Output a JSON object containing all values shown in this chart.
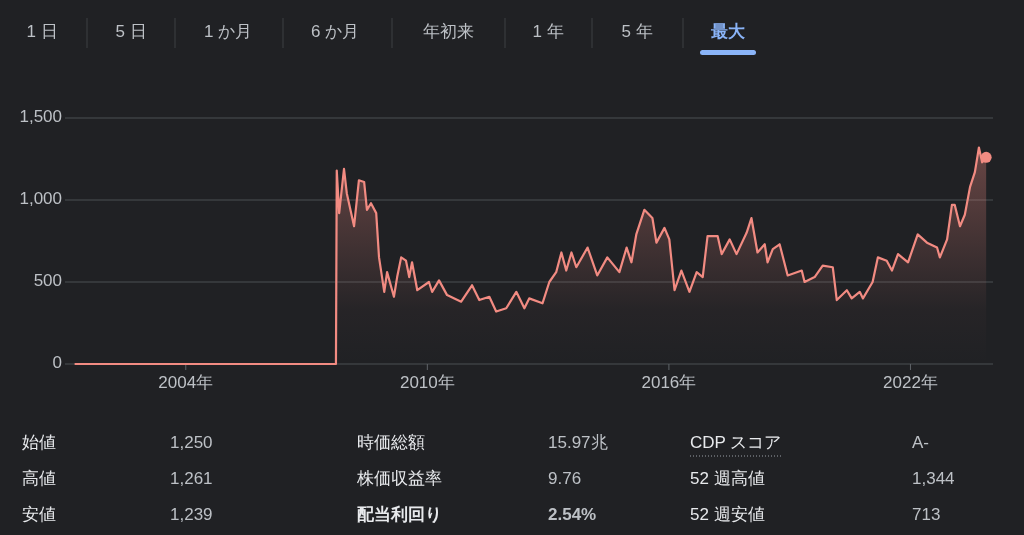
{
  "chart_data": {
    "type": "area",
    "x": [
      2001.26,
      2007.73,
      2007.75,
      2007.81,
      2007.93,
      2008.0,
      2008.18,
      2008.3,
      2008.43,
      2008.5,
      2008.6,
      2008.73,
      2008.8,
      2008.93,
      2009.0,
      2009.17,
      2009.25,
      2009.35,
      2009.47,
      2009.55,
      2009.62,
      2009.75,
      2010.04,
      2010.12,
      2010.29,
      2010.49,
      2010.84,
      2011.11,
      2011.29,
      2011.54,
      2011.71,
      2011.96,
      2012.21,
      2012.41,
      2012.53,
      2012.86,
      2013.03,
      2013.2,
      2013.33,
      2013.45,
      2013.58,
      2013.7,
      2013.98,
      2014.22,
      2014.47,
      2014.77,
      2014.95,
      2015.07,
      2015.19,
      2015.39,
      2015.59,
      2015.69,
      2015.89,
      2016.01,
      2016.14,
      2016.31,
      2016.51,
      2016.69,
      2016.84,
      2016.96,
      2017.21,
      2017.31,
      2017.51,
      2017.68,
      2017.93,
      2018.05,
      2018.2,
      2018.38,
      2018.45,
      2018.58,
      2018.75,
      2018.95,
      2019.3,
      2019.37,
      2019.62,
      2019.82,
      2020.07,
      2020.17,
      2020.42,
      2020.54,
      2020.74,
      2020.82,
      2021.06,
      2021.19,
      2021.41,
      2021.54,
      2021.69,
      2021.94,
      2022.18,
      2022.41,
      2022.66,
      2022.73,
      2022.91,
      2023.03,
      2023.1,
      2023.23,
      2023.35,
      2023.48,
      2023.6,
      2023.7,
      2023.78,
      2023.88
    ],
    "series": [
      {
        "color": "#f28b82",
        "values": [
          0,
          0,
          1180,
          920,
          1190,
          1040,
          840,
          1120,
          1110,
          940,
          980,
          920,
          650,
          440,
          560,
          410,
          530,
          650,
          630,
          530,
          620,
          450,
          500,
          440,
          510,
          420,
          380,
          480,
          390,
          410,
          320,
          340,
          440,
          340,
          400,
          370,
          500,
          560,
          680,
          570,
          680,
          590,
          710,
          540,
          650,
          560,
          710,
          620,
          790,
          940,
          890,
          740,
          830,
          760,
          450,
          570,
          440,
          560,
          530,
          780,
          780,
          670,
          760,
          670,
          800,
          890,
          680,
          730,
          620,
          700,
          730,
          540,
          570,
          500,
          530,
          600,
          590,
          390,
          450,
          400,
          440,
          400,
          500,
          650,
          630,
          570,
          670,
          620,
          790,
          740,
          710,
          650,
          760,
          970,
          970,
          840,
          910,
          1080,
          1170,
          1320,
          1230,
          1260
        ]
      }
    ],
    "xlim": [
      2001.0,
      2024.05
    ],
    "ylim": [
      0,
      1500
    ],
    "xticks": [
      {
        "value": 2004,
        "label": "2004年"
      },
      {
        "value": 2010,
        "label": "2010年"
      },
      {
        "value": 2016,
        "label": "2016年"
      },
      {
        "value": 2022,
        "label": "2022年"
      }
    ],
    "yticks": [
      0,
      500,
      {
        "value": 1000,
        "label": "1,000"
      },
      {
        "value": 1500,
        "label": "1,500"
      }
    ],
    "grid": "y",
    "marker": "none",
    "line_style": "solid",
    "annotations": [
      "1 日",
      "5 日",
      "1 か月",
      "6 か月",
      "年初来",
      "1 年",
      "5 年",
      "最大",
      "始値",
      "1,250",
      "時価総額",
      "15.97兆",
      "CDP スコア",
      "A-",
      "高値",
      "1,261",
      "株価収益率",
      "9.76",
      "52 週高値",
      "1,344",
      "安値",
      "1,239",
      "配当利回り",
      "2.54%",
      "52 週安値",
      "713"
    ]
  }
}
